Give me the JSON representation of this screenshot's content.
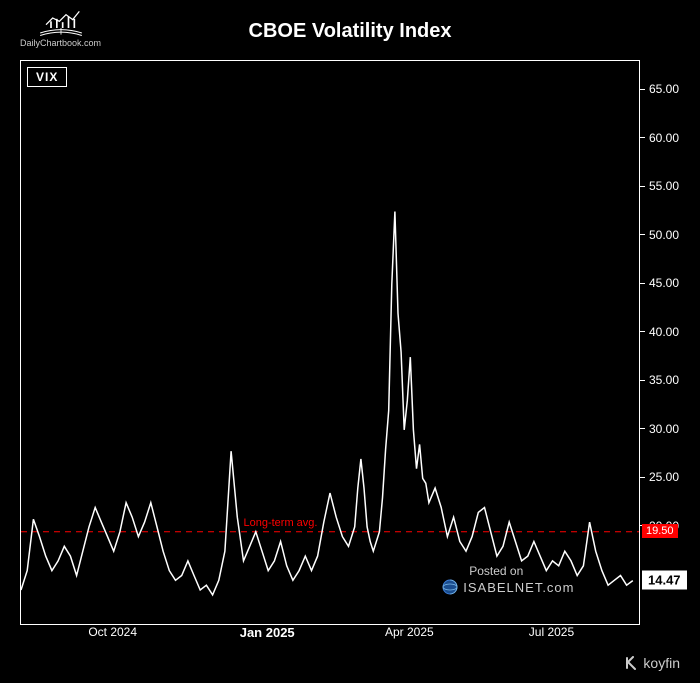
{
  "title": "CBOE Volatility Index",
  "source_logo_text": "DailyChartbook.com",
  "series_badge": "VIX",
  "chart": {
    "type": "line",
    "background_color": "#000000",
    "border_color": "#ffffff",
    "line_color": "#ffffff",
    "line_width": 1.5,
    "ylim": [
      10,
      68
    ],
    "yticks": [
      65.0,
      60.0,
      55.0,
      50.0,
      45.0,
      40.0,
      35.0,
      30.0,
      25.0,
      20.0,
      14.47
    ],
    "ytick_labels": [
      "65.00",
      "60.00",
      "55.00",
      "50.00",
      "45.00",
      "40.00",
      "35.00",
      "30.00",
      "25.00",
      "20.00",
      "14.47"
    ],
    "xticks": [
      {
        "label": "Oct 2024",
        "pos": 0.15,
        "bold": false
      },
      {
        "label": "Jan 2025",
        "pos": 0.4,
        "bold": true
      },
      {
        "label": "Apr 2025",
        "pos": 0.63,
        "bold": false
      },
      {
        "label": "Jul 2025",
        "pos": 0.86,
        "bold": false
      }
    ],
    "reference_line": {
      "label": "Long-term avg.",
      "value": 19.5,
      "value_text": "19.50",
      "color": "#ff0000",
      "dash": "6,5",
      "width": 1
    },
    "last_value": {
      "value": 14.47,
      "text": "14.47",
      "background": "#ffffff",
      "color": "#000000"
    },
    "data": [
      [
        0.0,
        13.5
      ],
      [
        0.01,
        15.5
      ],
      [
        0.02,
        20.8
      ],
      [
        0.03,
        19.0
      ],
      [
        0.04,
        17.0
      ],
      [
        0.05,
        15.5
      ],
      [
        0.06,
        16.5
      ],
      [
        0.07,
        18.0
      ],
      [
        0.08,
        17.0
      ],
      [
        0.09,
        15.0
      ],
      [
        0.1,
        17.5
      ],
      [
        0.11,
        20.0
      ],
      [
        0.12,
        22.0
      ],
      [
        0.13,
        20.5
      ],
      [
        0.14,
        19.0
      ],
      [
        0.15,
        17.5
      ],
      [
        0.16,
        19.5
      ],
      [
        0.17,
        22.5
      ],
      [
        0.18,
        21.0
      ],
      [
        0.19,
        19.0
      ],
      [
        0.2,
        20.5
      ],
      [
        0.21,
        22.5
      ],
      [
        0.22,
        20.0
      ],
      [
        0.23,
        17.5
      ],
      [
        0.24,
        15.5
      ],
      [
        0.25,
        14.5
      ],
      [
        0.26,
        15.0
      ],
      [
        0.27,
        16.5
      ],
      [
        0.28,
        15.0
      ],
      [
        0.29,
        13.5
      ],
      [
        0.3,
        14.0
      ],
      [
        0.31,
        13.0
      ],
      [
        0.32,
        14.5
      ],
      [
        0.33,
        17.5
      ],
      [
        0.34,
        27.8
      ],
      [
        0.35,
        21.0
      ],
      [
        0.36,
        16.5
      ],
      [
        0.37,
        18.0
      ],
      [
        0.38,
        19.5
      ],
      [
        0.39,
        17.5
      ],
      [
        0.4,
        15.5
      ],
      [
        0.41,
        16.5
      ],
      [
        0.42,
        18.5
      ],
      [
        0.43,
        16.0
      ],
      [
        0.44,
        14.5
      ],
      [
        0.45,
        15.5
      ],
      [
        0.46,
        17.0
      ],
      [
        0.47,
        15.5
      ],
      [
        0.48,
        17.0
      ],
      [
        0.49,
        20.5
      ],
      [
        0.5,
        23.5
      ],
      [
        0.51,
        21.0
      ],
      [
        0.52,
        19.0
      ],
      [
        0.53,
        18.0
      ],
      [
        0.54,
        20.0
      ],
      [
        0.545,
        24.0
      ],
      [
        0.55,
        27.0
      ],
      [
        0.555,
        24.0
      ],
      [
        0.56,
        20.0
      ],
      [
        0.565,
        18.5
      ],
      [
        0.57,
        17.5
      ],
      [
        0.58,
        19.5
      ],
      [
        0.585,
        23.0
      ],
      [
        0.59,
        28.0
      ],
      [
        0.595,
        32.0
      ],
      [
        0.6,
        45.0
      ],
      [
        0.605,
        52.5
      ],
      [
        0.61,
        42.0
      ],
      [
        0.615,
        38.0
      ],
      [
        0.62,
        30.0
      ],
      [
        0.625,
        33.0
      ],
      [
        0.63,
        37.5
      ],
      [
        0.635,
        30.0
      ],
      [
        0.64,
        26.0
      ],
      [
        0.645,
        28.5
      ],
      [
        0.65,
        25.0
      ],
      [
        0.655,
        24.5
      ],
      [
        0.66,
        22.5
      ],
      [
        0.67,
        24.0
      ],
      [
        0.68,
        22.0
      ],
      [
        0.69,
        19.0
      ],
      [
        0.7,
        21.0
      ],
      [
        0.71,
        18.5
      ],
      [
        0.72,
        17.5
      ],
      [
        0.73,
        19.0
      ],
      [
        0.74,
        21.5
      ],
      [
        0.75,
        22.0
      ],
      [
        0.76,
        19.5
      ],
      [
        0.77,
        17.0
      ],
      [
        0.78,
        18.0
      ],
      [
        0.79,
        20.5
      ],
      [
        0.8,
        18.5
      ],
      [
        0.81,
        16.5
      ],
      [
        0.82,
        17.0
      ],
      [
        0.83,
        18.5
      ],
      [
        0.84,
        17.0
      ],
      [
        0.85,
        15.5
      ],
      [
        0.86,
        16.5
      ],
      [
        0.87,
        16.0
      ],
      [
        0.88,
        17.5
      ],
      [
        0.89,
        16.5
      ],
      [
        0.9,
        15.0
      ],
      [
        0.91,
        16.0
      ],
      [
        0.92,
        20.5
      ],
      [
        0.93,
        17.5
      ],
      [
        0.94,
        15.5
      ],
      [
        0.95,
        14.0
      ],
      [
        0.96,
        14.5
      ],
      [
        0.97,
        15.0
      ],
      [
        0.98,
        14.0
      ],
      [
        0.99,
        14.47
      ]
    ]
  },
  "watermark": {
    "line1": "Posted on",
    "line2": "ISABELNET.com"
  },
  "footer_brand": "koyfin"
}
